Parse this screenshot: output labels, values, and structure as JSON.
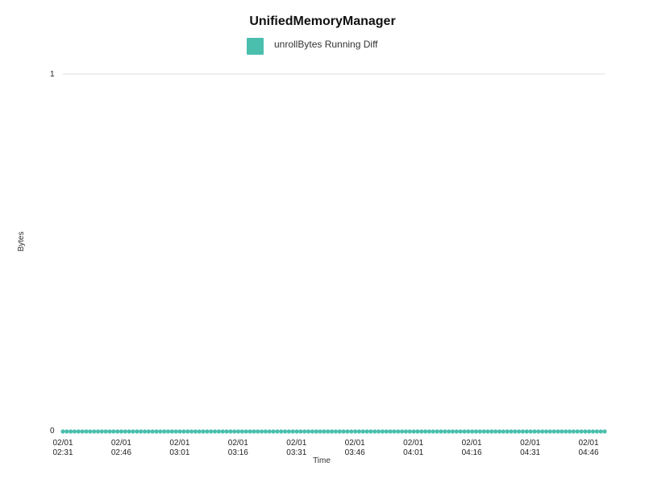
{
  "colors": {
    "series": "#4bbfae",
    "gridline": "#dddddd",
    "background": "#ffffff"
  },
  "chart_data": {
    "type": "scatter",
    "title": "UnifiedMemoryManager",
    "xlabel": "Time",
    "ylabel": "Bytes",
    "ylim": [
      0,
      1
    ],
    "y_ticks": [
      "0",
      "1"
    ],
    "x_ticks": [
      {
        "line1": "02/01",
        "line2": "02:31"
      },
      {
        "line1": "02/01",
        "line2": "02:46"
      },
      {
        "line1": "02/01",
        "line2": "03:01"
      },
      {
        "line1": "02/01",
        "line2": "03:16"
      },
      {
        "line1": "02/01",
        "line2": "03:31"
      },
      {
        "line1": "02/01",
        "line2": "03:46"
      },
      {
        "line1": "02/01",
        "line2": "04:01"
      },
      {
        "line1": "02/01",
        "line2": "04:16"
      },
      {
        "line1": "02/01",
        "line2": "04:31"
      },
      {
        "line1": "02/01",
        "line2": "04:46"
      }
    ],
    "legend_position": "top-center",
    "grid": "horizontal at top value only",
    "series": [
      {
        "name": "unrollBytes Running Diff",
        "color": "#4bbfae",
        "point_count": 140,
        "value": 0
      }
    ]
  }
}
